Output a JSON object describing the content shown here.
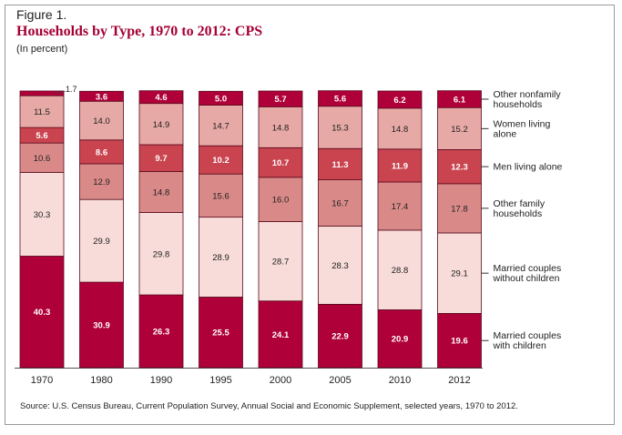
{
  "figure_label": "Figure 1.",
  "source": "Source: U.S. Census Bureau, Current Population Survey, Annual Social and Economic Supplement, selected years, 1970 to 2012.",
  "chart_data": {
    "type": "bar",
    "stacked": true,
    "title": "Households by Type, 1970 to 2012: CPS",
    "subtitle": "(In percent)",
    "xlabel": "",
    "ylabel": "",
    "ylim": [
      0,
      100
    ],
    "categories": [
      "1970",
      "1980",
      "1990",
      "1995",
      "2000",
      "2005",
      "2010",
      "2012"
    ],
    "series": [
      {
        "name": "Married couples with children",
        "label_lines": [
          "Married couples",
          "with children"
        ],
        "color": "#b0003a",
        "label_color": "#ffffff",
        "values": [
          40.3,
          30.9,
          26.3,
          25.5,
          24.1,
          22.9,
          20.9,
          19.6
        ]
      },
      {
        "name": "Married couples without children",
        "label_lines": [
          "Married couples",
          "without children"
        ],
        "color": "#f7dcd9",
        "label_color": "#222222",
        "values": [
          30.3,
          29.9,
          29.8,
          28.9,
          28.7,
          28.3,
          28.8,
          29.1
        ]
      },
      {
        "name": "Other family households",
        "label_lines": [
          "Other family",
          "households"
        ],
        "color": "#d98a88",
        "label_color": "#222222",
        "values": [
          10.6,
          12.9,
          14.8,
          15.6,
          16.0,
          16.7,
          17.4,
          17.8
        ]
      },
      {
        "name": "Men living alone",
        "label_lines": [
          "Men living alone"
        ],
        "color": "#c9444f",
        "label_color": "#ffffff",
        "values": [
          5.6,
          8.6,
          9.7,
          10.2,
          10.7,
          11.3,
          11.9,
          12.3
        ]
      },
      {
        "name": "Women living alone",
        "label_lines": [
          "Women living",
          "alone"
        ],
        "color": "#e6a9a6",
        "label_color": "#222222",
        "values": [
          11.5,
          14.0,
          14.9,
          14.7,
          14.8,
          15.3,
          14.8,
          15.2
        ]
      },
      {
        "name": "Other nonfamily households",
        "label_lines": [
          "Other nonfamily",
          "households"
        ],
        "color": "#b0003a",
        "label_color": "#ffffff",
        "values": [
          1.7,
          3.6,
          4.6,
          5.0,
          5.7,
          5.6,
          6.2,
          6.1
        ]
      }
    ],
    "display_labels": [
      [
        "40.3",
        "30.9",
        "26.3",
        "25.5",
        "24.1",
        "22.9",
        "20.9",
        "19.6"
      ],
      [
        "30.3",
        "29.9",
        "29.8",
        "28.9",
        "28.7",
        "28.3",
        "28.8",
        "29.1"
      ],
      [
        "10.6",
        "12.9",
        "14.8",
        "15.6",
        "16.0",
        "16.7",
        "17.4",
        "17.8"
      ],
      [
        "5.6",
        "8.6",
        "9.7",
        "10.2",
        "10.7",
        "11.3",
        "11.9",
        "12.3"
      ],
      [
        "11.5",
        "14.0",
        "14.9",
        "14.7",
        "14.8",
        "15.3",
        "14.8",
        "15.2"
      ],
      [
        "1.7",
        "3.6",
        "4.6",
        "5.0",
        "5.7",
        "5.6",
        "6.2",
        "6.1"
      ]
    ],
    "legend_placement": "right"
  }
}
